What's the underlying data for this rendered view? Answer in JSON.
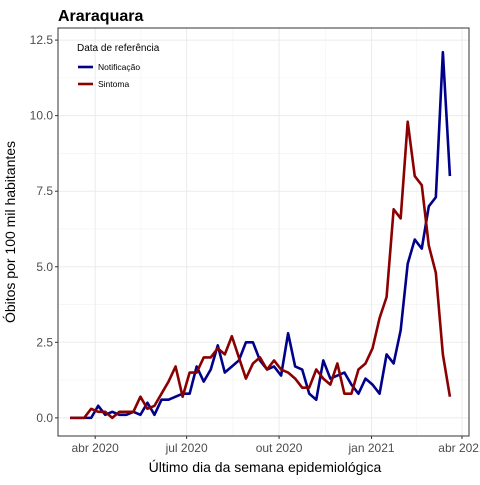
{
  "chart_data": {
    "type": "line",
    "title": "Araraquara",
    "xlabel": "Último dia da semana epidemiológica",
    "ylabel": "Óbitos por 100 mil habitantes",
    "x_ticks": [
      {
        "date": "2020-04-01",
        "label": "abr 2020"
      },
      {
        "date": "2020-07-01",
        "label": "jul 2020"
      },
      {
        "date": "2020-10-01",
        "label": "out 2020"
      },
      {
        "date": "2021-01-01",
        "label": "jan 2021"
      },
      {
        "date": "2021-04-01",
        "label": "abr 2021"
      }
    ],
    "y_ticks": [
      0.0,
      2.5,
      5.0,
      7.5,
      10.0,
      12.5
    ],
    "y_tick_labels": [
      "0.0",
      "2.5",
      "5.0",
      "7.5",
      "10.0",
      "12.5"
    ],
    "xlim": [
      "2020-02-24",
      "2021-04-08"
    ],
    "ylim": [
      -0.6,
      12.9
    ],
    "grid": true,
    "legend": {
      "title": "Data de referência",
      "position": "top-left"
    },
    "colors": {
      "Notificação": "#00008b",
      "Sintoma": "#8b0000"
    },
    "series": [
      {
        "name": "Notificação",
        "points": [
          [
            "2020-03-07",
            0
          ],
          [
            "2020-03-14",
            0
          ],
          [
            "2020-03-21",
            0
          ],
          [
            "2020-03-28",
            0
          ],
          [
            "2020-04-04",
            0.4
          ],
          [
            "2020-04-11",
            0.1
          ],
          [
            "2020-04-18",
            0.2
          ],
          [
            "2020-04-25",
            0.1
          ],
          [
            "2020-05-02",
            0.1
          ],
          [
            "2020-05-09",
            0.2
          ],
          [
            "2020-05-16",
            0.1
          ],
          [
            "2020-05-23",
            0.5
          ],
          [
            "2020-05-30",
            0.1
          ],
          [
            "2020-06-06",
            0.6
          ],
          [
            "2020-06-13",
            0.6
          ],
          [
            "2020-06-20",
            0.7
          ],
          [
            "2020-06-27",
            0.8
          ],
          [
            "2020-07-04",
            0.8
          ],
          [
            "2020-07-11",
            1.7
          ],
          [
            "2020-07-18",
            1.2
          ],
          [
            "2020-07-25",
            1.6
          ],
          [
            "2020-08-01",
            2.4
          ],
          [
            "2020-08-08",
            1.5
          ],
          [
            "2020-08-15",
            1.7
          ],
          [
            "2020-08-22",
            1.9
          ],
          [
            "2020-08-29",
            2.5
          ],
          [
            "2020-09-05",
            2.5
          ],
          [
            "2020-09-12",
            1.9
          ],
          [
            "2020-09-19",
            1.6
          ],
          [
            "2020-09-26",
            1.7
          ],
          [
            "2020-10-03",
            1.4
          ],
          [
            "2020-10-10",
            2.8
          ],
          [
            "2020-10-17",
            1.7
          ],
          [
            "2020-10-24",
            1.6
          ],
          [
            "2020-10-31",
            0.8
          ],
          [
            "2020-11-07",
            0.6
          ],
          [
            "2020-11-14",
            1.9
          ],
          [
            "2020-11-21",
            1.3
          ],
          [
            "2020-11-28",
            1.4
          ],
          [
            "2020-12-05",
            1.5
          ],
          [
            "2020-12-12",
            1.1
          ],
          [
            "2020-12-19",
            0.8
          ],
          [
            "2020-12-26",
            1.3
          ],
          [
            "2021-01-02",
            1.1
          ],
          [
            "2021-01-09",
            0.8
          ],
          [
            "2021-01-16",
            2.1
          ],
          [
            "2021-01-23",
            1.8
          ],
          [
            "2021-01-30",
            2.9
          ],
          [
            "2021-02-06",
            5.1
          ],
          [
            "2021-02-13",
            5.9
          ],
          [
            "2021-02-20",
            5.6
          ],
          [
            "2021-02-27",
            7.0
          ],
          [
            "2021-03-06",
            7.3
          ],
          [
            "2021-03-13",
            12.1
          ],
          [
            "2021-03-20",
            8.0
          ]
        ]
      },
      {
        "name": "Sintoma",
        "points": [
          [
            "2020-03-07",
            0
          ],
          [
            "2020-03-14",
            0
          ],
          [
            "2020-03-21",
            0
          ],
          [
            "2020-03-28",
            0.3
          ],
          [
            "2020-04-04",
            0.2
          ],
          [
            "2020-04-11",
            0.2
          ],
          [
            "2020-04-18",
            0
          ],
          [
            "2020-04-25",
            0.2
          ],
          [
            "2020-05-02",
            0.2
          ],
          [
            "2020-05-09",
            0.2
          ],
          [
            "2020-05-16",
            0.7
          ],
          [
            "2020-05-23",
            0.3
          ],
          [
            "2020-05-30",
            0.4
          ],
          [
            "2020-06-06",
            0.8
          ],
          [
            "2020-06-13",
            1.2
          ],
          [
            "2020-06-20",
            1.7
          ],
          [
            "2020-06-27",
            0.7
          ],
          [
            "2020-07-04",
            1.5
          ],
          [
            "2020-07-11",
            1.5
          ],
          [
            "2020-07-18",
            2.0
          ],
          [
            "2020-07-25",
            2.0
          ],
          [
            "2020-08-01",
            2.3
          ],
          [
            "2020-08-08",
            2.1
          ],
          [
            "2020-08-15",
            2.7
          ],
          [
            "2020-08-22",
            2.0
          ],
          [
            "2020-08-29",
            1.3
          ],
          [
            "2020-09-05",
            1.8
          ],
          [
            "2020-09-12",
            2.0
          ],
          [
            "2020-09-19",
            1.6
          ],
          [
            "2020-09-26",
            1.9
          ],
          [
            "2020-10-03",
            1.6
          ],
          [
            "2020-10-10",
            1.5
          ],
          [
            "2020-10-17",
            1.3
          ],
          [
            "2020-10-24",
            1.0
          ],
          [
            "2020-10-31",
            1.0
          ],
          [
            "2020-11-07",
            1.6
          ],
          [
            "2020-11-14",
            1.3
          ],
          [
            "2020-11-21",
            1.1
          ],
          [
            "2020-11-28",
            1.8
          ],
          [
            "2020-12-05",
            0.8
          ],
          [
            "2020-12-12",
            0.8
          ],
          [
            "2020-12-19",
            1.6
          ],
          [
            "2020-12-26",
            1.8
          ],
          [
            "2021-01-02",
            2.3
          ],
          [
            "2021-01-09",
            3.3
          ],
          [
            "2021-01-16",
            4.0
          ],
          [
            "2021-01-23",
            6.9
          ],
          [
            "2021-01-30",
            6.6
          ],
          [
            "2021-02-06",
            9.8
          ],
          [
            "2021-02-13",
            8.0
          ],
          [
            "2021-02-20",
            7.7
          ],
          [
            "2021-02-27",
            5.7
          ],
          [
            "2021-03-06",
            4.8
          ],
          [
            "2021-03-13",
            2.1
          ],
          [
            "2021-03-20",
            0.7
          ]
        ]
      }
    ]
  }
}
